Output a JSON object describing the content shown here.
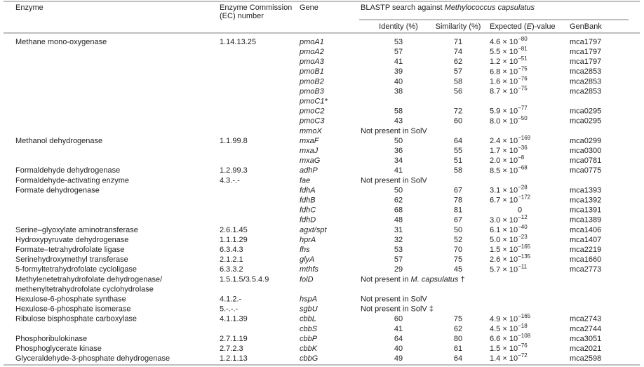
{
  "header": {
    "enzyme": "Enzyme",
    "ec": [
      "Enzyme Commission",
      "(EC) number"
    ],
    "gene": "Gene",
    "blastp": [
      "BLASTP search against ",
      "Methylococcus capsulatus"
    ],
    "identity": "Identity (%)",
    "similarity": "Similarity (%)",
    "expected": [
      "Expected (",
      "E",
      ")-value"
    ],
    "genbank": "GenBank"
  },
  "rows": [
    {
      "enzyme": "Methane mono-oxygenase",
      "ec": "1.14.13.25",
      "gene": "pmoA1",
      "identity": 53,
      "similarity": 71,
      "evalue": {
        "mantissa": "4.6 × 10",
        "exponent": "−80"
      },
      "genbank": "mca1797"
    },
    {
      "gene": "pmoA2",
      "identity": 57,
      "similarity": 74,
      "evalue": {
        "mantissa": "5.5 × 10",
        "exponent": "−81"
      },
      "genbank": "mca1797"
    },
    {
      "gene": "pmoA3",
      "identity": 41,
      "similarity": 62,
      "evalue": {
        "mantissa": "1.2 × 10",
        "exponent": "−51"
      },
      "genbank": "mca1797"
    },
    {
      "gene": "pmoB1",
      "identity": 39,
      "similarity": 57,
      "evalue": {
        "mantissa": "6.8 × 10",
        "exponent": "−75"
      },
      "genbank": "mca2853"
    },
    {
      "gene": "pmoB2",
      "identity": 40,
      "similarity": 58,
      "evalue": {
        "mantissa": "1.6 × 10",
        "exponent": "−76"
      },
      "genbank": "mca2853"
    },
    {
      "gene": "pmoB3",
      "identity": 38,
      "similarity": 56,
      "evalue": {
        "mantissa": "8.7 × 10",
        "exponent": "−75"
      },
      "genbank": "mca2853"
    },
    {
      "gene": "pmoC1*"
    },
    {
      "gene": "pmoC2",
      "identity": 58,
      "similarity": 72,
      "evalue": {
        "mantissa": "5.9 × 10",
        "exponent": "−77"
      },
      "genbank": "mca0295"
    },
    {
      "gene": "pmoC3",
      "identity": 43,
      "similarity": 60,
      "evalue": {
        "mantissa": "8.0 × 10",
        "exponent": "−50"
      },
      "genbank": "mca0295"
    },
    {
      "gene": "mmoX",
      "note": [
        "Not present in SolV"
      ]
    },
    {
      "enzyme": "Methanol dehydrogenase",
      "ec": "1.1.99.8",
      "gene": "mxaF",
      "identity": 50,
      "similarity": 64,
      "evalue": {
        "mantissa": "2.4 × 10",
        "exponent": "−169"
      },
      "genbank": "mca0299"
    },
    {
      "gene": "mxaJ",
      "identity": 36,
      "similarity": 55,
      "evalue": {
        "mantissa": "1.7 × 10",
        "exponent": "−36"
      },
      "genbank": "mca0300"
    },
    {
      "gene": "mxaG",
      "identity": 34,
      "similarity": 51,
      "evalue": {
        "mantissa": "2.0 × 10",
        "exponent": "−8"
      },
      "genbank": "mca0781"
    },
    {
      "enzyme": "Formaldehyde dehydrogenase",
      "ec": "1.2.99.3",
      "gene": "adhP",
      "identity": 41,
      "similarity": 58,
      "evalue": {
        "mantissa": "8.5 × 10",
        "exponent": "−68"
      },
      "genbank": "mca0775"
    },
    {
      "enzyme": "Formaldehyde-activating enzyme",
      "ec": "4.3.-.-",
      "gene": "fae",
      "note": [
        "Not present in SolV"
      ]
    },
    {
      "enzyme": "Formate dehydrogenase",
      "gene": "fdhA",
      "identity": 50,
      "similarity": 67,
      "evalue": {
        "mantissa": "3.1 × 10",
        "exponent": "−28"
      },
      "genbank": "mca1393"
    },
    {
      "gene": "fdhB",
      "identity": 62,
      "similarity": 78,
      "evalue": {
        "mantissa": "6.7 × 10",
        "exponent": "−172"
      },
      "genbank": "mca1392"
    },
    {
      "gene": "fdhC",
      "identity": 68,
      "similarity": 81,
      "evalue": "0",
      "genbank": "mca1391"
    },
    {
      "gene": "fdhD",
      "identity": 48,
      "similarity": 67,
      "evalue": {
        "mantissa": "3.0 × 10",
        "exponent": "−12"
      },
      "genbank": "mca1389"
    },
    {
      "enzyme": "Serine–glyoxylate aminotransferase",
      "ec": "2.6.1.45",
      "gene": "agxt/spt",
      "identity": 31,
      "similarity": 50,
      "evalue": {
        "mantissa": "6.1 × 10",
        "exponent": "−40"
      },
      "genbank": "mca1406"
    },
    {
      "enzyme": "Hydroxypyruvate dehydrogenase",
      "ec": "1.1.1.29",
      "gene": "hprA",
      "identity": 32,
      "similarity": 52,
      "evalue": {
        "mantissa": "5.0 × 10",
        "exponent": "−23"
      },
      "genbank": "mca1407"
    },
    {
      "enzyme": "Formate–tetrahydrofolate ligase",
      "ec": "6.3.4.3",
      "gene": "fhs",
      "identity": 53,
      "similarity": 70,
      "evalue": {
        "mantissa": "1.5 × 10",
        "exponent": "−165"
      },
      "genbank": "mca2219"
    },
    {
      "enzyme": "Serinehydroxymethyl transferase",
      "ec": "2.1.2.1",
      "gene": "glyA",
      "identity": 57,
      "similarity": 75,
      "evalue": {
        "mantissa": "2.6 × 10",
        "exponent": "−135"
      },
      "genbank": "mca1660"
    },
    {
      "enzyme": "5-formyltetrahydrofolate cycloligase",
      "ec": "6.3.3.2",
      "gene": "mthfs",
      "identity": 29,
      "similarity": 45,
      "evalue": {
        "mantissa": "5.7 × 10",
        "exponent": "−11"
      },
      "genbank": "mca2773"
    },
    {
      "enzyme": "Methylenetetrahydrofolate dehydrogenase/",
      "ec": "1.5.1.5/3.5.4.9",
      "gene": "folD",
      "note": [
        "Not present in ",
        "M. capsulatus",
        " †"
      ]
    },
    {
      "enzyme": "methenyltetrahydrofolate cyclohydrolase"
    },
    {
      "enzyme": "Hexulose-6-phosphate synthase",
      "ec": "4.1.2.-",
      "gene": "hspA",
      "note": [
        "Not present in SolV"
      ]
    },
    {
      "enzyme": "Hexulose-6-phosphate isomerase",
      "ec": "5.-.-.-",
      "gene": "sgbU",
      "note": [
        "Not present in SolV ‡"
      ]
    },
    {
      "enzyme": "Ribulose bisphosphate carboxylase",
      "ec": "4.1.1.39",
      "gene": "cbbL",
      "identity": 60,
      "similarity": 75,
      "evalue": {
        "mantissa": "4.9 × 10",
        "exponent": "−165"
      },
      "genbank": "mca2743"
    },
    {
      "gene": "cbbS",
      "identity": 41,
      "similarity": 62,
      "evalue": {
        "mantissa": "4.5 × 10",
        "exponent": "−18"
      },
      "genbank": "mca2744"
    },
    {
      "enzyme": "Phosphoribulokinase",
      "ec": "2.7.1.19",
      "gene": "cbbP",
      "identity": 64,
      "similarity": 80,
      "evalue": {
        "mantissa": "6.6 × 10",
        "exponent": "−108"
      },
      "genbank": "mca3051"
    },
    {
      "enzyme": "Phosphoglycerate kinase",
      "ec": "2.7.2.3",
      "gene": "cbbK",
      "identity": 40,
      "similarity": 61,
      "evalue": {
        "mantissa": "1.5 × 10",
        "exponent": "−76"
      },
      "genbank": "mca2021"
    },
    {
      "enzyme": "Glyceraldehyde-3-phosphate dehydrogenase",
      "ec": "1.2.1.13",
      "gene": "cbbG",
      "identity": 49,
      "similarity": 64,
      "evalue": {
        "mantissa": "1.4 × 10",
        "exponent": "−72"
      },
      "genbank": "mca2598"
    }
  ]
}
